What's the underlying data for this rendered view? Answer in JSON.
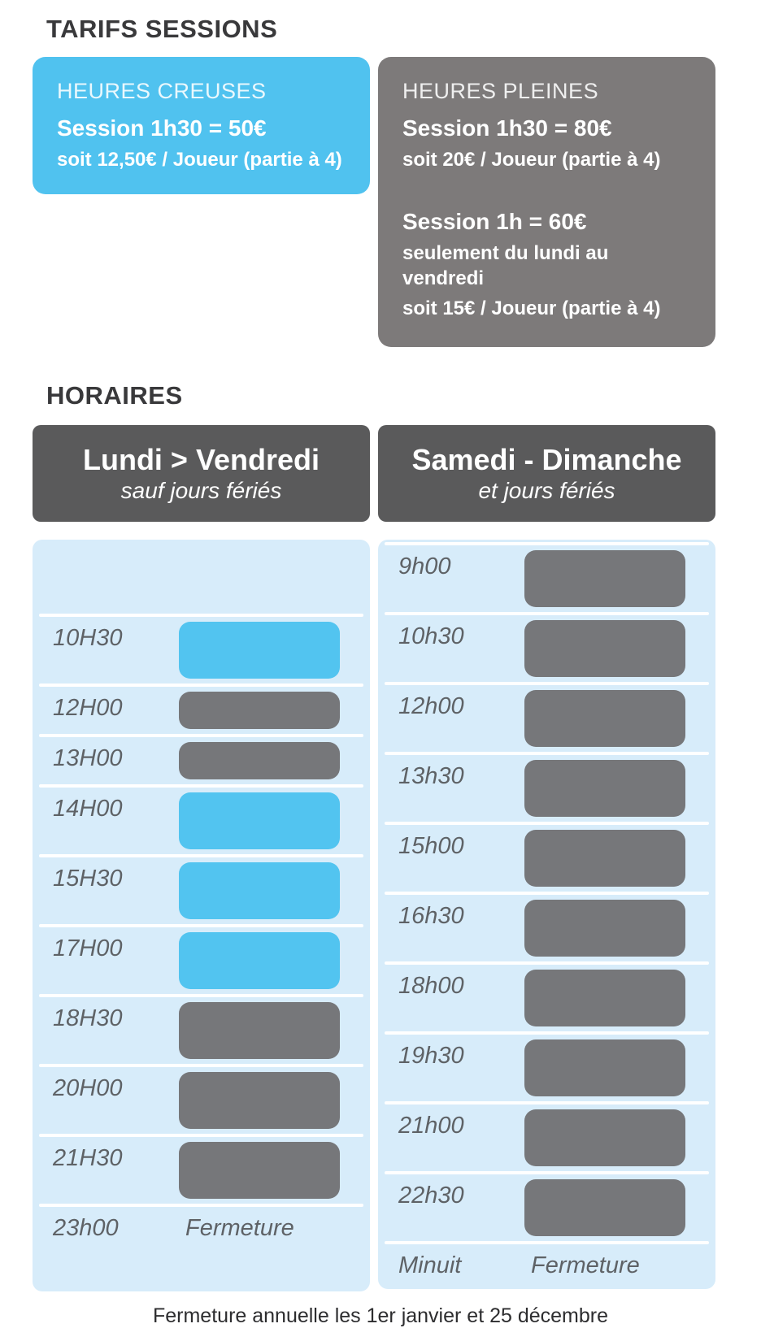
{
  "title": "TARIFS SESSIONS",
  "colors": {
    "off_peak_blue": "#50c2ef",
    "peak_gray": "#7d7a7a",
    "header_gray": "#5a5a5b",
    "panel_light_blue": "#d7ecfa",
    "block_blue": "#52c4f0",
    "block_gray": "#76777a"
  },
  "cards": {
    "creuses": {
      "label": "HEURES CREUSES",
      "price_line": "Session 1h30 = 50€",
      "per_player_line": "soit 12,50€ / Joueur (partie à 4)"
    },
    "pleines": {
      "label": "HEURES PLEINES",
      "price_line_1": "Session 1h30 = 80€",
      "per_player_line_1": "soit 20€ / Joueur (partie à 4)",
      "price_line_2": "Session 1h = 60€",
      "condition_line": "seulement du lundi au vendredi",
      "per_player_line_2": "soit 15€ / Joueur (partie à 4)"
    }
  },
  "horaires": {
    "title": "HORAIRES",
    "columns": [
      {
        "id": "weekdays",
        "title": "Lundi > Vendredi",
        "subtitle": "sauf jours fériés",
        "rows": [
          {
            "time": "",
            "slot": "empty",
            "duration": "1h30"
          },
          {
            "time": "10H30",
            "slot": "creuse",
            "duration": "1h30"
          },
          {
            "time": "12H00",
            "slot": "pleine",
            "duration": "1h"
          },
          {
            "time": "13H00",
            "slot": "pleine",
            "duration": "1h"
          },
          {
            "time": "14H00",
            "slot": "creuse",
            "duration": "1h30"
          },
          {
            "time": "15H30",
            "slot": "creuse",
            "duration": "1h30"
          },
          {
            "time": "17H00",
            "slot": "creuse",
            "duration": "1h30"
          },
          {
            "time": "18H30",
            "slot": "pleine",
            "duration": "1h30"
          },
          {
            "time": "20H00",
            "slot": "pleine",
            "duration": "1h30"
          },
          {
            "time": "21H30",
            "slot": "pleine",
            "duration": "1h30"
          },
          {
            "time": "23h00",
            "slot": "fermeture",
            "note": "Fermeture"
          }
        ]
      },
      {
        "id": "weekend",
        "title": "Samedi - Dimanche",
        "subtitle": "et jours fériés",
        "rows": [
          {
            "time": "9h00",
            "slot": "pleine",
            "duration": "1h30"
          },
          {
            "time": "10h30",
            "slot": "pleine",
            "duration": "1h30"
          },
          {
            "time": "12h00",
            "slot": "pleine",
            "duration": "1h30"
          },
          {
            "time": "13h30",
            "slot": "pleine",
            "duration": "1h30"
          },
          {
            "time": "15h00",
            "slot": "pleine",
            "duration": "1h30"
          },
          {
            "time": "16h30",
            "slot": "pleine",
            "duration": "1h30"
          },
          {
            "time": "18h00",
            "slot": "pleine",
            "duration": "1h30"
          },
          {
            "time": "19h30",
            "slot": "pleine",
            "duration": "1h30"
          },
          {
            "time": "21h00",
            "slot": "pleine",
            "duration": "1h30"
          },
          {
            "time": "22h30",
            "slot": "pleine",
            "duration": "1h30"
          },
          {
            "time": "Minuit",
            "slot": "fermeture",
            "note": "Fermeture"
          }
        ]
      }
    ]
  },
  "footer": "Fermeture annuelle les 1er janvier et 25 décembre"
}
